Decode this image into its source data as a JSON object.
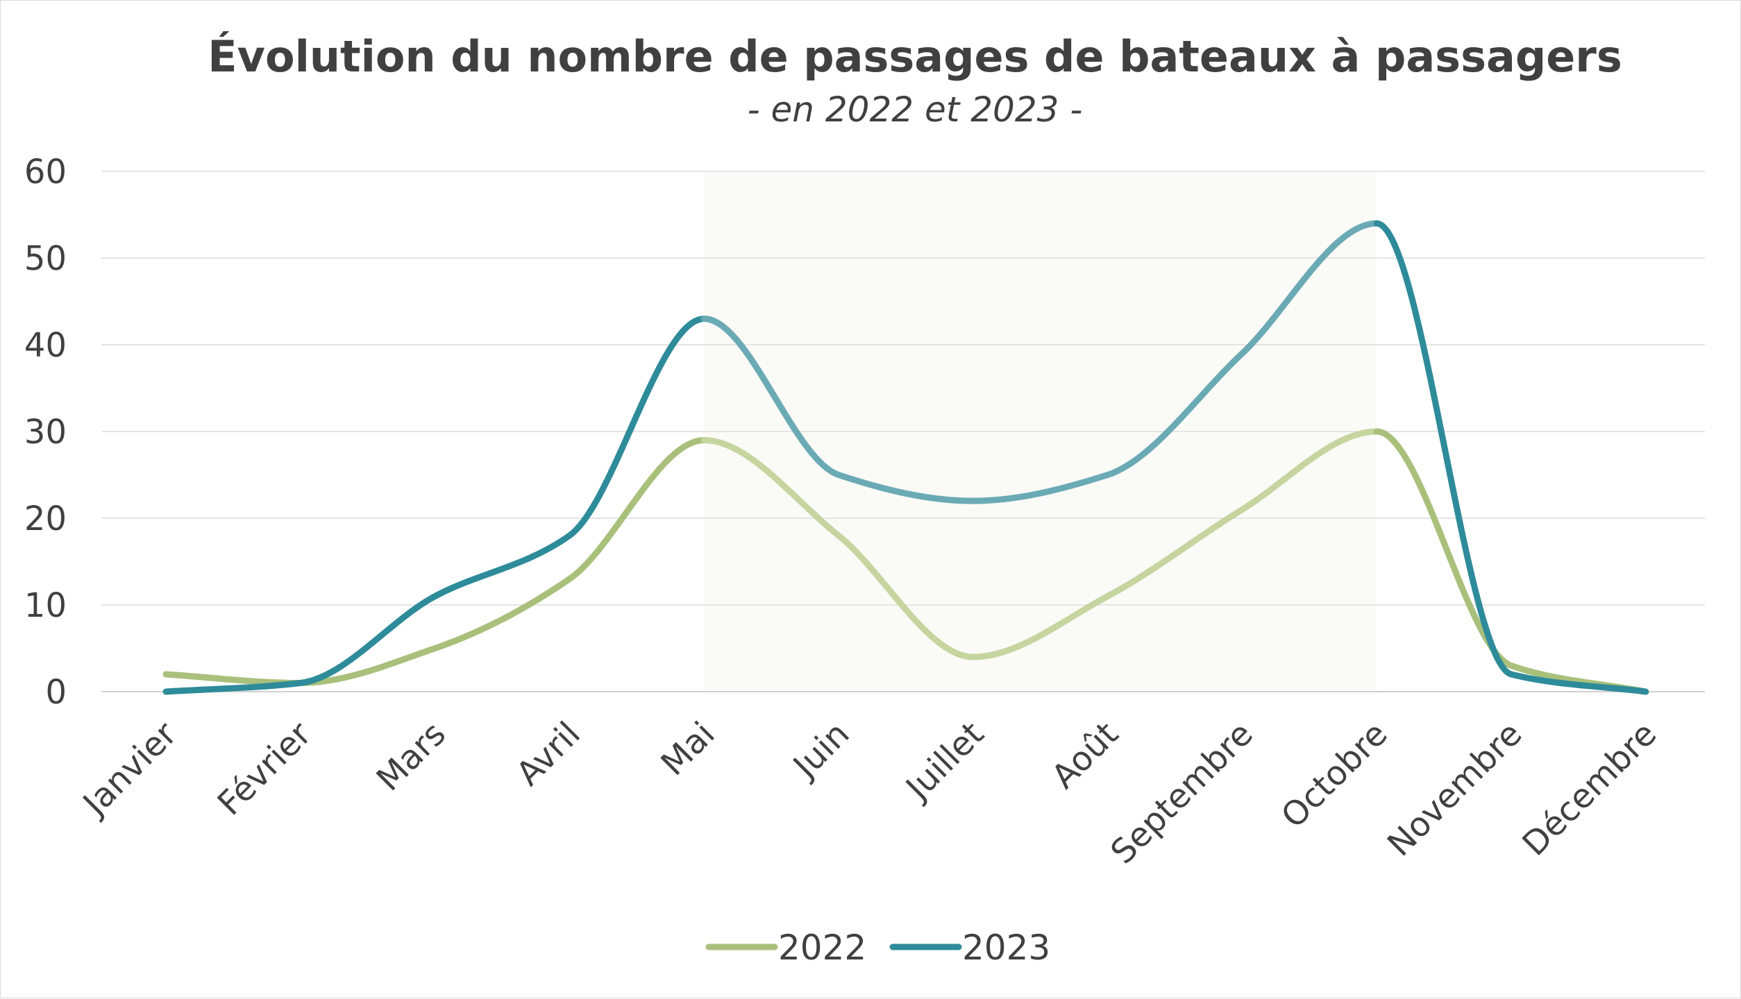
{
  "chart_data": {
    "type": "line",
    "title": "Évolution du nombre de passages de bateaux à passagers",
    "subtitle": "- en 2022 et 2023 -",
    "xlabel": "",
    "ylabel": "",
    "categories": [
      "Janvier",
      "Février",
      "Mars",
      "Avril",
      "Mai",
      "Juin",
      "Juillet",
      "Août",
      "Septembre",
      "Octobre",
      "Novembre",
      "Décembre"
    ],
    "ylim": [
      0,
      60
    ],
    "yticks": [
      0,
      10,
      20,
      30,
      40,
      50,
      60
    ],
    "grid": true,
    "legend": "bottom",
    "highlight_range": [
      "Mai",
      "Octobre"
    ],
    "series": [
      {
        "name": "2022",
        "color": "#a9c07b",
        "highlight_color": "#c6d59f",
        "values": [
          2,
          1,
          5,
          13,
          29,
          18,
          4,
          11,
          21,
          30,
          3,
          0
        ]
      },
      {
        "name": "2023",
        "color": "#2e8b9a",
        "highlight_color": "#6aaab5",
        "values": [
          0,
          1,
          11,
          18,
          43,
          25,
          22,
          25,
          39,
          54,
          2,
          0
        ]
      }
    ]
  }
}
